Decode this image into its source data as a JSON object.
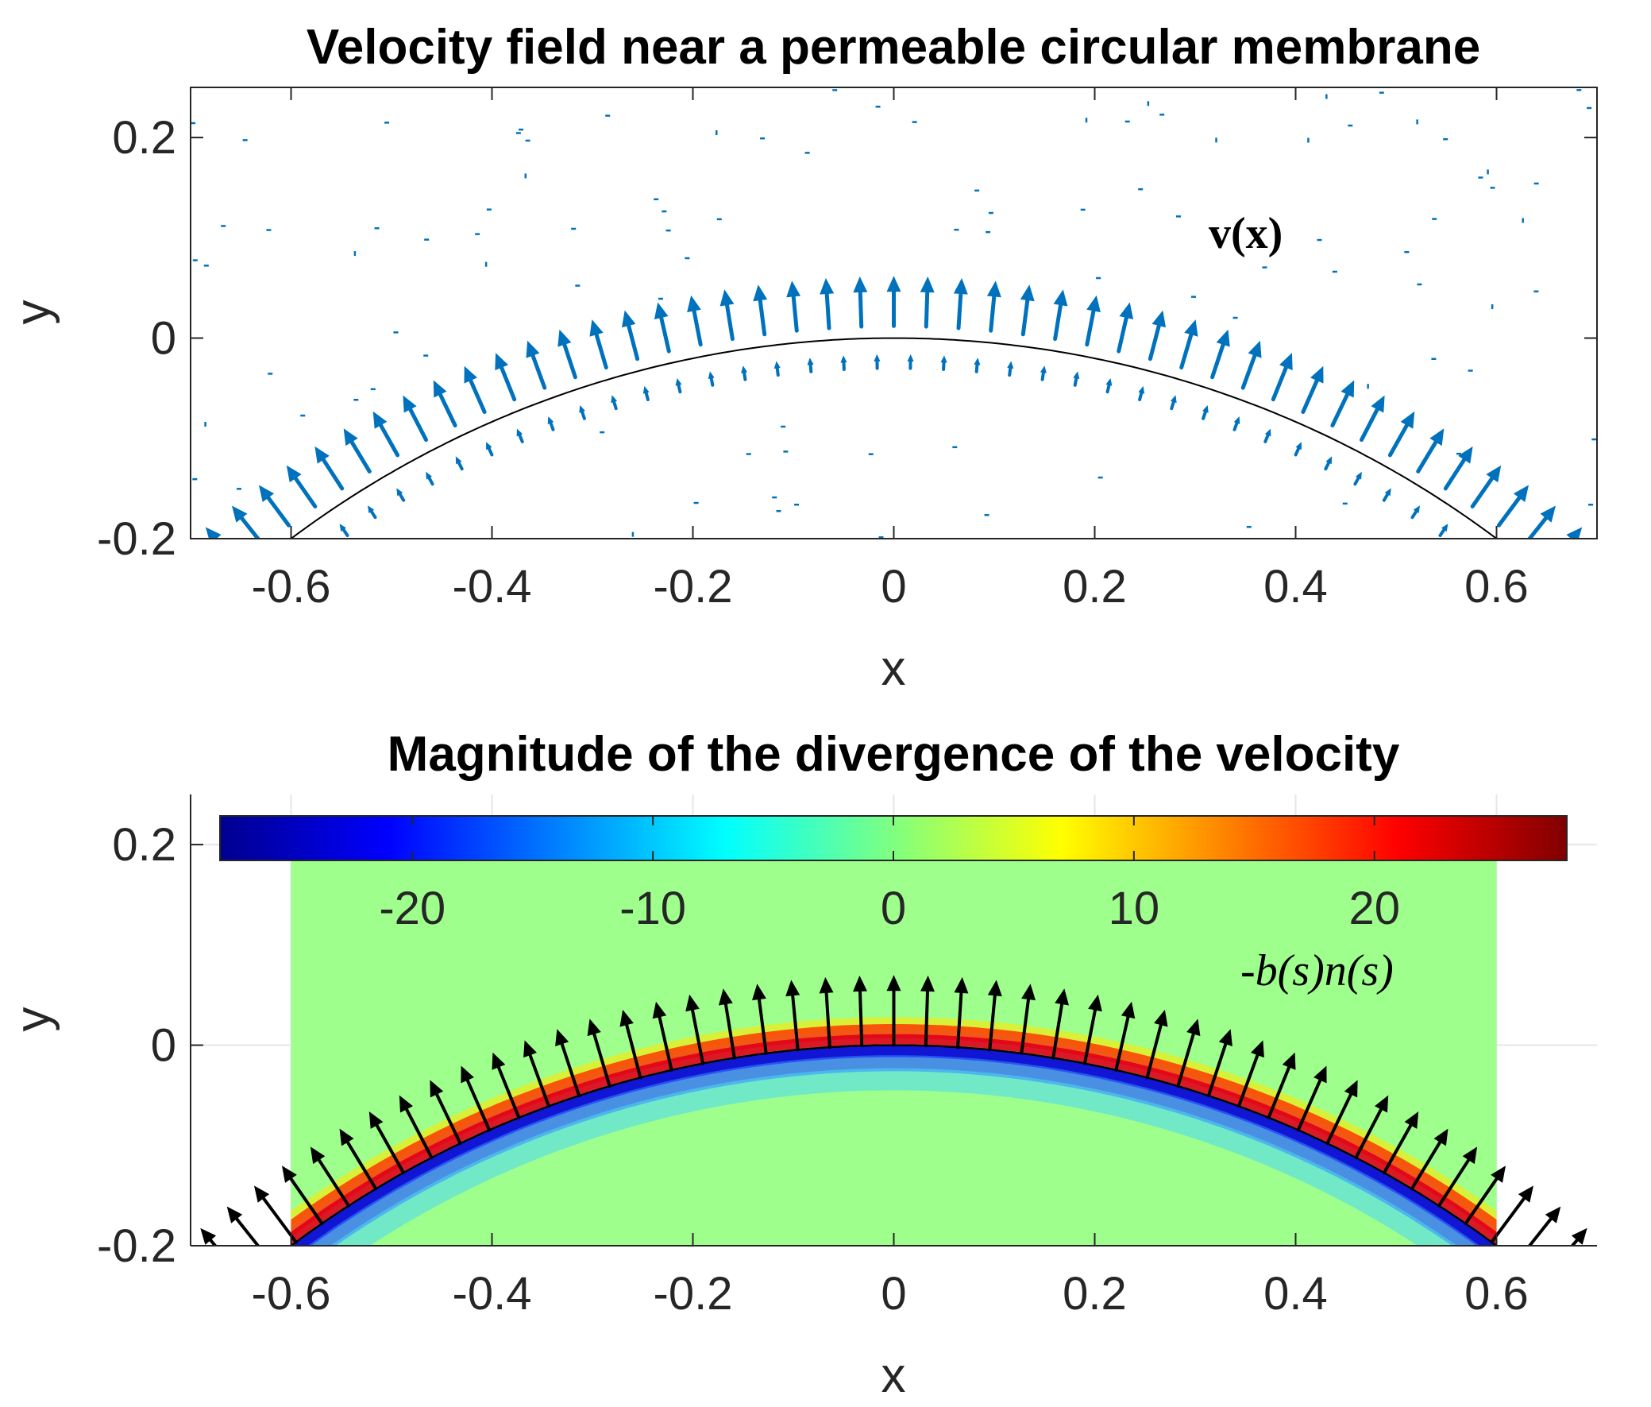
{
  "chart_data": [
    {
      "type": "quiver",
      "title": "Velocity field near a permeable circular membrane",
      "xlabel": "x",
      "ylabel": "y",
      "xlim": [
        -0.7,
        0.7
      ],
      "ylim": [
        -0.2,
        0.25
      ],
      "xticks": [
        "-0.6",
        "-0.4",
        "-0.2",
        "0",
        "0.2",
        "0.4",
        "0.6"
      ],
      "yticks": [
        "-0.2",
        "0",
        "0.2"
      ],
      "grid": false,
      "series": [
        {
          "kind": "line",
          "color": "#000000",
          "center": [
            0,
            -1
          ],
          "radius": 1,
          "x_range": [
            -0.6,
            0.6
          ]
        },
        {
          "kind": "quiver",
          "color": "#0072BD",
          "arc_offset": 0.012,
          "arrow_length": 0.05,
          "count": 47,
          "theta_range_deg": [
            -42,
            42
          ]
        },
        {
          "kind": "quiver",
          "color": "#0072BD",
          "arc_offset": -0.03,
          "arrow_length": 0.014,
          "count": 40,
          "theta_range_deg": [
            -38,
            38
          ]
        }
      ],
      "annotation": {
        "text": "v(x)",
        "x": 0.37,
        "y": 0.1
      }
    },
    {
      "type": "heatmap",
      "title": "Magnitude of the divergence of the velocity",
      "xlabel": "x",
      "ylabel": "y",
      "xlim": [
        -0.7,
        0.7
      ],
      "ylim": [
        -0.2,
        0.25
      ],
      "xticks": [
        "-0.6",
        "-0.4",
        "-0.2",
        "0",
        "0.2",
        "0.4",
        "0.6"
      ],
      "yticks": [
        "-0.2",
        "0",
        "0.2"
      ],
      "grid": true,
      "heatmap": {
        "x_range": [
          -0.6,
          0.6
        ],
        "y_range": [
          -0.2,
          0.19
        ],
        "background_value": 0,
        "outer_band_value": 25,
        "inner_band_value": -25
      },
      "colorbar": {
        "location": "top",
        "colormap": "jet",
        "limits": [
          -28,
          28
        ],
        "ticks": [
          -20,
          -10,
          0,
          10,
          20
        ],
        "tick_labels": [
          "-20",
          "-10",
          "0",
          "10",
          "20"
        ]
      },
      "series": [
        {
          "kind": "line",
          "color": "#000000",
          "center": [
            0,
            -1
          ],
          "radius": 1
        },
        {
          "kind": "quiver",
          "color": "#000000",
          "arc_offset": 0.0,
          "arrow_length": 0.07,
          "count": 47,
          "theta_range_deg": [
            -42,
            42
          ]
        }
      ],
      "annotation": {
        "text": "-b(s)n(s)",
        "x": 0.35,
        "y": 0.11
      }
    }
  ]
}
